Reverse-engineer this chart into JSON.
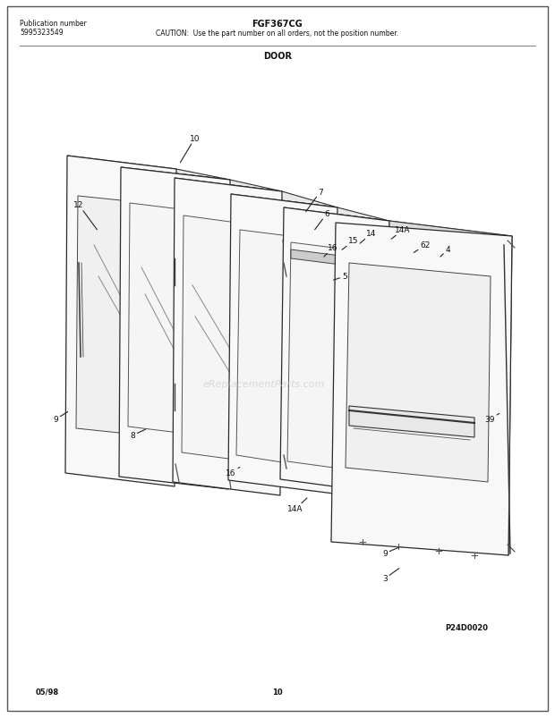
{
  "title": "FGF367CG",
  "caution": "CAUTION:  Use the part number on all orders, not the position number.",
  "section": "DOOR",
  "pub_label": "Publication number",
  "pub_number": "5995323549",
  "footer_left": "05/98",
  "footer_center": "10",
  "diagram_ref": "P24D0020",
  "bg_color": "#ffffff",
  "border_color": "#333333",
  "line_color": "#333333",
  "text_color": "#111111",
  "watermark": "eReplacementParts.com"
}
